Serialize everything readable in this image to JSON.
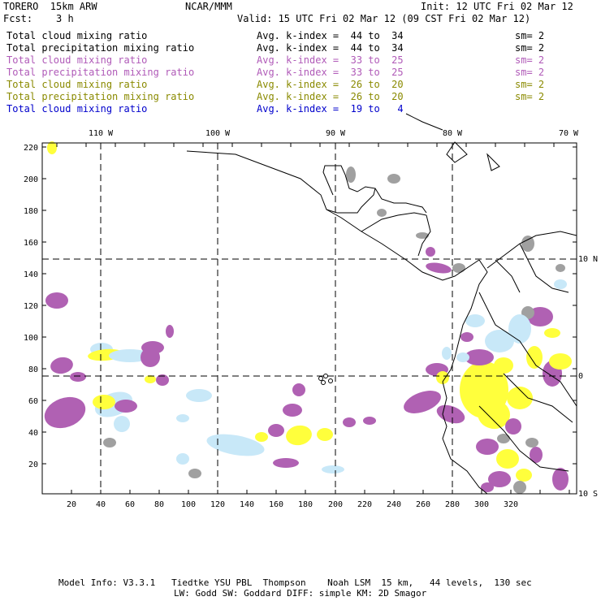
{
  "header": {
    "model": "TORERO  15km ARW",
    "org": "NCAR/MMM",
    "init": "Init: 12 UTC Fri 02 Mar 12",
    "fcst": "Fcst:    3 h",
    "valid": "Valid: 15 UTC Fri 02 Mar 12 (09 CST Fri 02 Mar 12)"
  },
  "legend": [
    {
      "field": "Total cloud mixing ratio",
      "kindex": "Avg. k-index =  44 to  34",
      "sm": "sm= 2",
      "color": "#000000"
    },
    {
      "field": "Total precipitation mixing ratio",
      "kindex": "Avg. k-index =  44 to  34",
      "sm": "sm= 2",
      "color": "#000000"
    },
    {
      "field": "Total cloud mixing ratio",
      "kindex": "Avg. k-index =  33 to  25",
      "sm": "sm= 2",
      "color": "#b05ab8"
    },
    {
      "field": "Total precipitation mixing ratio",
      "kindex": "Avg. k-index =  33 to  25",
      "sm": "sm= 2",
      "color": "#b05ab8"
    },
    {
      "field": "Total cloud mixing ratio",
      "kindex": "Avg. k-index =  26 to  20",
      "sm": "sm= 2",
      "color": "#8a8a00"
    },
    {
      "field": "Total precipitation mixing ratio",
      "kindex": "Avg. k-index =  26 to  20",
      "sm": "sm= 2",
      "color": "#8a8a00"
    },
    {
      "field": "Total cloud mixing ratio",
      "kindex": "Avg. k-index =  19 to   4",
      "sm": "",
      "color": "#0000cc"
    }
  ],
  "map": {
    "lon_labels": [
      "110 W",
      "100 W",
      "90 W",
      "80 W",
      "70 W"
    ],
    "lat_labels": [
      "10 N",
      "0",
      "10 S"
    ],
    "y_ticks": [
      "220",
      "200",
      "180",
      "160",
      "140",
      "120",
      "100",
      "80",
      "60",
      "40",
      "20"
    ],
    "x_ticks": [
      "20",
      "40",
      "60",
      "80",
      "100",
      "120",
      "140",
      "160",
      "180",
      "200",
      "220",
      "240",
      "260",
      "280",
      "300",
      "320"
    ],
    "colors": {
      "purple": "#b061b3",
      "yellow": "#ffff3c",
      "lightblue": "#c8e8f8",
      "gray": "#a0a0a0"
    }
  },
  "footer": {
    "line1": "Model Info: V3.3.1   Tiedtke YSU PBL  Thompson    Noah LSM  15 km,   44 levels,  130 sec",
    "line2": "LW: Godd SW: Goddard DIFF: simple KM: 2D Smagor"
  }
}
